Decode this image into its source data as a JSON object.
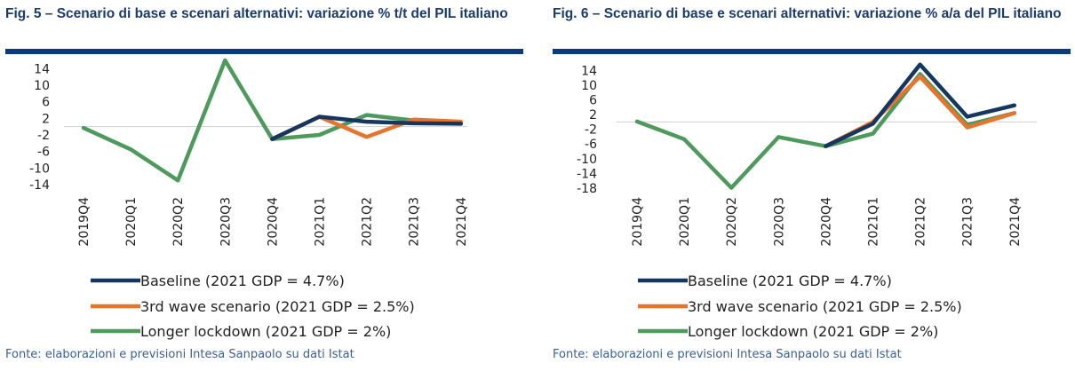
{
  "source": "Fonte: elaborazioni e previsioni Intesa Sanpaolo su dati Istat",
  "colors": {
    "title": "#1b3b6f",
    "rule": "#0d3a7a",
    "source": "#3a5f8f",
    "baseline": "#14365f",
    "third_wave": "#e8742c",
    "lockdown": "#4e9a5c"
  },
  "chart_data": [
    {
      "type": "line",
      "title": "Fig. 5 – Scenario di base e scenari alternativi: variazione % t/t del PIL italiano",
      "categories": [
        "2019Q4",
        "2020Q1",
        "2020Q2",
        "2020Q3",
        "2020Q4",
        "2021Q1",
        "2021Q2",
        "2021Q3",
        "2021Q4"
      ],
      "yticks": [
        "14",
        "10",
        "6",
        "2",
        "-2",
        "-6",
        "-10",
        "-14"
      ],
      "ylim": [
        -14,
        16
      ],
      "legend": "bottom",
      "series": [
        {
          "name": "Baseline (2021 GDP = 4.7%)",
          "color": "#14365f",
          "values": [
            null,
            null,
            null,
            null,
            -3.0,
            2.4,
            1.2,
            0.8,
            0.7
          ]
        },
        {
          "name": "3rd wave scenario (2021 GDP = 2.5%)",
          "color": "#e8742c",
          "values": [
            null,
            null,
            null,
            null,
            -3.0,
            2.4,
            -2.5,
            1.7,
            1.2
          ]
        },
        {
          "name": "Longer lockdown (2021 GDP = 2%)",
          "color": "#4e9a5c",
          "values": [
            -0.3,
            -5.5,
            -13.0,
            16.0,
            -3.0,
            -2.0,
            2.8,
            1.5,
            0.7
          ]
        }
      ]
    },
    {
      "type": "line",
      "title": "Fig. 6 – Scenario di base e scenari alternativi: variazione % a/a del PIL italiano",
      "categories": [
        "2019Q4",
        "2020Q1",
        "2020Q2",
        "2020Q3",
        "2020Q4",
        "2021Q1",
        "2021Q2",
        "2021Q3",
        "2021Q4"
      ],
      "yticks": [
        "14",
        "10",
        "6",
        "2",
        "-2",
        "-6",
        "-10",
        "-14",
        "-18"
      ],
      "ylim": [
        -18,
        16
      ],
      "legend": "bottom",
      "series": [
        {
          "name": "Baseline (2021 GDP = 4.7%)",
          "color": "#14365f",
          "values": [
            null,
            null,
            null,
            null,
            -6.6,
            -0.5,
            15.6,
            1.4,
            4.5
          ]
        },
        {
          "name": "3rd wave scenario (2021 GDP = 2.5%)",
          "color": "#e8742c",
          "values": [
            null,
            null,
            null,
            null,
            -6.6,
            0.0,
            12.3,
            -1.5,
            2.4
          ]
        },
        {
          "name": "Longer lockdown (2021 GDP = 2%)",
          "color": "#4e9a5c",
          "values": [
            0.1,
            -4.7,
            -17.9,
            -4.1,
            -6.6,
            -3.2,
            13.0,
            -0.8,
            2.4
          ]
        }
      ]
    }
  ]
}
